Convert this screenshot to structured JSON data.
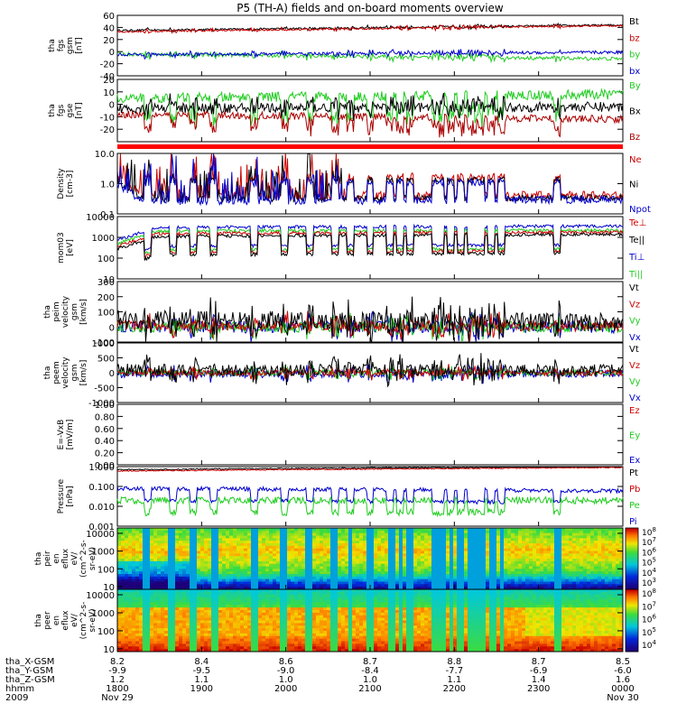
{
  "title": "P5 (TH-A) fields and on-board moments overview",
  "chart_data": [
    {
      "type": "line",
      "ylabel": [
        "tha",
        "fgs",
        "gsm",
        "[nT]"
      ],
      "ylim": [
        -40,
        60
      ],
      "yticks": [
        60,
        40,
        20,
        0,
        -20,
        -40
      ],
      "legend": [
        {
          "name": "Bt",
          "color": "#000000"
        },
        {
          "name": "bz",
          "color": "#cc0000"
        },
        {
          "name": "by",
          "color": "#22cc22"
        },
        {
          "name": "bx",
          "color": "#0000cc"
        }
      ],
      "series": [
        {
          "name": "Bt",
          "color": "#000000",
          "base": 35,
          "end": 44,
          "noise": 1.5
        },
        {
          "name": "bz",
          "color": "#cc0000",
          "base": 33,
          "end": 43,
          "noise": 1.5
        },
        {
          "name": "by",
          "color": "#22cc22",
          "base": -4,
          "end": -12,
          "noise": 3
        },
        {
          "name": "bx",
          "color": "#0000cc",
          "base": -5,
          "end": -1,
          "noise": 2.5
        }
      ]
    },
    {
      "type": "line",
      "ylabel": [
        "tha",
        "fgs",
        "gse",
        "[nT]"
      ],
      "ylim": [
        -30,
        20
      ],
      "yticks": [
        20,
        10,
        0,
        -10,
        -20
      ],
      "legend": [
        {
          "name": "By",
          "color": "#22cc22"
        },
        {
          "name": "Bx",
          "color": "#000000"
        },
        {
          "name": "Bz",
          "color": "#aa0000"
        }
      ],
      "series": [
        {
          "name": "By",
          "color": "#22cc22",
          "base": 5,
          "end": 8,
          "noise": 4
        },
        {
          "name": "Bx",
          "color": "#000000",
          "base": -3,
          "end": -2,
          "noise": 4
        },
        {
          "name": "Bz",
          "color": "#aa0000",
          "base": -8,
          "end": -12,
          "noise": 3
        }
      ]
    },
    {
      "type": "line",
      "ylabel": [
        "Density",
        "[cm-3]"
      ],
      "log": true,
      "ylim": [
        0.1,
        10
      ],
      "yticks": [
        "10.0",
        "1.0",
        "0.1"
      ],
      "legend": [
        {
          "name": "Ne",
          "color": "#cc0000"
        },
        {
          "name": "Ni",
          "color": "#000000"
        },
        {
          "name": "Npot",
          "color": "#0000cc"
        }
      ],
      "series": [
        {
          "name": "Ne",
          "color": "#cc0000",
          "base": 0.4,
          "end": 0.4,
          "noise": 0.3
        },
        {
          "name": "Ni",
          "color": "#000000",
          "base": 0.3,
          "end": 0.35,
          "noise": 0.2
        },
        {
          "name": "Npot",
          "color": "#0000cc",
          "base": 0.25,
          "end": 0.3,
          "noise": 0.25
        }
      ]
    },
    {
      "type": "line",
      "ylabel": [
        "mom03",
        "[eV]"
      ],
      "log": true,
      "ylim": [
        10,
        10000
      ],
      "yticks": [
        "10000",
        "1000",
        "100",
        "10"
      ],
      "legend": [
        {
          "name": "Te⊥",
          "color": "#cc0000"
        },
        {
          "name": "Te||",
          "color": "#000000"
        },
        {
          "name": "Ti⊥",
          "color": "#0000cc"
        },
        {
          "name": "Ti||",
          "color": "#22cc22"
        }
      ],
      "series": [
        {
          "name": "Ti⊥",
          "color": "#0000cc",
          "base": 3000,
          "end": 3500,
          "noise": 0.15
        },
        {
          "name": "Ti||",
          "color": "#22cc22",
          "base": 2000,
          "end": 2200,
          "noise": 0.15
        },
        {
          "name": "Te⊥",
          "color": "#cc0000",
          "base": 1500,
          "end": 1800,
          "noise": 0.15
        },
        {
          "name": "Te||",
          "color": "#000000",
          "base": 1100,
          "end": 1400,
          "noise": 0.15
        }
      ]
    },
    {
      "type": "line",
      "ylabel": [
        "tha",
        "peim",
        "velocity",
        "gsm",
        "[km/s]"
      ],
      "ylim": [
        -100,
        300
      ],
      "yticks": [
        300,
        200,
        100,
        0,
        -100
      ],
      "legend": [
        {
          "name": "Vt",
          "color": "#000000"
        },
        {
          "name": "Vz",
          "color": "#cc0000"
        },
        {
          "name": "Vy",
          "color": "#22cc22"
        },
        {
          "name": "Vx",
          "color": "#0000cc"
        }
      ],
      "series": [
        {
          "name": "Vx",
          "color": "#0000cc",
          "base": 0,
          "end": 0,
          "noise": 40
        },
        {
          "name": "Vy",
          "color": "#22cc22",
          "base": 0,
          "end": 0,
          "noise": 35
        },
        {
          "name": "Vz",
          "color": "#cc0000",
          "base": 10,
          "end": 5,
          "noise": 35
        },
        {
          "name": "Vt",
          "color": "#000000",
          "base": 50,
          "end": 30,
          "noise": 60
        }
      ]
    },
    {
      "type": "line",
      "ylabel": [
        "tha",
        "peem",
        "velocity",
        "gsm",
        "[km/s]"
      ],
      "ylim": [
        -1000,
        1000
      ],
      "yticks": [
        1000,
        500,
        0,
        -500,
        -1000
      ],
      "legend": [
        {
          "name": "Vt",
          "color": "#000000"
        },
        {
          "name": "Vz",
          "color": "#cc0000"
        },
        {
          "name": "Vy",
          "color": "#22cc22"
        },
        {
          "name": "Vx",
          "color": "#0000cc"
        }
      ],
      "series": [
        {
          "name": "Vx",
          "color": "#0000cc",
          "base": -50,
          "end": -30,
          "noise": 120
        },
        {
          "name": "Vy",
          "color": "#22cc22",
          "base": 0,
          "end": 0,
          "noise": 100
        },
        {
          "name": "Vz",
          "color": "#cc0000",
          "base": 0,
          "end": 0,
          "noise": 100
        },
        {
          "name": "Vt",
          "color": "#000000",
          "base": 100,
          "end": 80,
          "noise": 200
        }
      ]
    },
    {
      "type": "line",
      "ylabel": [
        "E=-VxB",
        "[mV/m]"
      ],
      "ylim": [
        0,
        1
      ],
      "yticks": [
        "1.00",
        "0.80",
        "0.60",
        "0.40",
        "0.20",
        "0.00"
      ],
      "legend": [
        {
          "name": "Ez",
          "color": "#cc0000"
        },
        {
          "name": "Ey",
          "color": "#22cc22"
        },
        {
          "name": "Ex",
          "color": "#0000cc"
        }
      ],
      "series": []
    },
    {
      "type": "line",
      "ylabel": [
        "Pressure",
        "[nPa]"
      ],
      "log": true,
      "ylim": [
        0.001,
        1
      ],
      "yticks": [
        "1.000",
        "0.100",
        "0.010",
        "0.001"
      ],
      "legend": [
        {
          "name": "Pt",
          "color": "#000000"
        },
        {
          "name": "Pb",
          "color": "#cc0000"
        },
        {
          "name": "Pe",
          "color": "#22cc22"
        },
        {
          "name": "Pi",
          "color": "#0000cc"
        }
      ],
      "series": [
        {
          "name": "Pt",
          "color": "#000000",
          "base": 0.7,
          "end": 1.0,
          "noise": 0.05
        },
        {
          "name": "Pb",
          "color": "#cc0000",
          "base": 0.6,
          "end": 0.9,
          "noise": 0.05
        },
        {
          "name": "Pi",
          "color": "#0000cc",
          "base": 0.08,
          "end": 0.06,
          "noise": 0.2
        },
        {
          "name": "Pe",
          "color": "#22cc22",
          "base": 0.02,
          "end": 0.02,
          "noise": 0.35
        }
      ]
    },
    {
      "type": "heatmap",
      "ylabel": [
        "tha",
        "peir",
        "en",
        "eflux",
        "eV/",
        "(cm^2-s-",
        "sr-eV)"
      ],
      "log": true,
      "ylim": [
        7,
        20000
      ],
      "yticks": [
        "10000",
        "1000",
        "100",
        "10"
      ],
      "colorbar": [
        "10^8",
        "10^7",
        "10^6",
        "10^5",
        "10^4",
        "10^3"
      ],
      "colorbar_range": [
        3,
        8
      ]
    },
    {
      "type": "heatmap",
      "ylabel": [
        "tha",
        "peer",
        "en",
        "eflux",
        "eV/",
        "(cm^2-s-",
        "sr-eV)"
      ],
      "log": true,
      "ylim": [
        7,
        20000
      ],
      "yticks": [
        "10000",
        "1000",
        "100",
        "10"
      ],
      "colorbar": [
        "10^8",
        "10^7",
        "10^6",
        "10^5",
        "10^4"
      ],
      "colorbar_range": [
        4,
        8
      ]
    }
  ],
  "xaxis": {
    "row_labels": [
      "tha_X-GSM",
      "tha_Y-GSM",
      "tha_Z-GSM",
      "hhmm",
      "2009"
    ],
    "ticks": [
      [
        "8.2",
        "8.4",
        "8.6",
        "8.7",
        "8.8",
        "8.7",
        "8.5"
      ],
      [
        "-9.9",
        "-9.5",
        "-9.0",
        "-8.4",
        "-7.7",
        "-6.9",
        "-6.0"
      ],
      [
        "1.2",
        "1.1",
        "1.0",
        "1.0",
        "1.1",
        "1.4",
        "1.6"
      ],
      [
        "1800",
        "1900",
        "2000",
        "2100",
        "2200",
        "2300",
        "0000"
      ],
      [
        "Nov 29",
        "",
        "",
        "",
        "",
        "",
        "Nov 30"
      ]
    ]
  }
}
